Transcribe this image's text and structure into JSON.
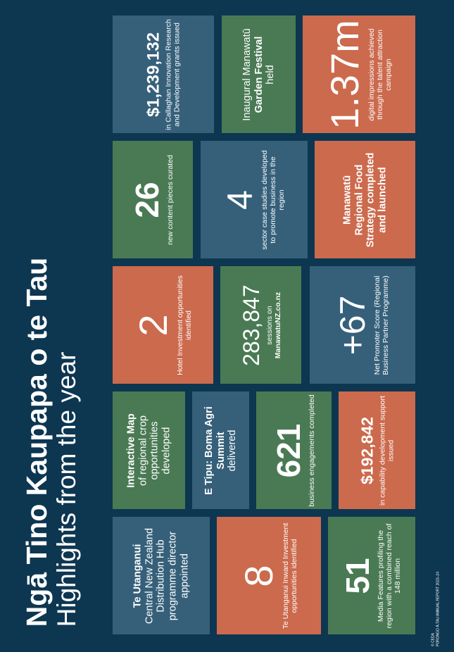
{
  "title": {
    "line1": "Ngā Tino Kaupapa o te Tau",
    "line2": "Highlights from the year"
  },
  "footer": {
    "org": "© CEDA",
    "report": "PŪRONGO Ā-TAU ANNUAL REPORT 2023–24"
  },
  "tiles": {
    "callaghan": {
      "value": "$1,239,132",
      "desc": "in Callaghan Innovation Research and Development grants issued"
    },
    "garden": {
      "pre": "Inaugural Manawatū",
      "bold": "Garden Festival",
      "post": "held"
    },
    "impressions": {
      "value": "1.37m",
      "desc": "digital impressions achieved through the talent attraction campaign"
    },
    "content": {
      "value": "26",
      "desc": "new content pieces curated"
    },
    "casestudies": {
      "value": "4",
      "desc": "sector case studies developed to promote business in the region"
    },
    "foodstrategy": {
      "text": "Manawatū Regional Food Strategy completed and launched"
    },
    "hotel": {
      "value": "2",
      "desc": "Hotel Investment opportunities identified"
    },
    "sessions": {
      "value": "283,847",
      "desc": "sessions on",
      "site": "ManawatuNZ.co.nz"
    },
    "nps": {
      "value": "+67",
      "desc": "Net Promoter Score (Regional Business Partner Programme)"
    },
    "map": {
      "bold": "Interactive Map",
      "post": "of regional crop opportunities developed"
    },
    "etipu": {
      "bold": "E Tipu: Boma Agri Summit",
      "post": "delivered"
    },
    "engagements": {
      "value": "621",
      "desc": "business engagements completed"
    },
    "capability": {
      "value": "$192,842",
      "desc": "in capability development support issued"
    },
    "utanganui": {
      "bold": "Te Utanganui",
      "post": "Central New Zealand Distribution Hub programme director appointed"
    },
    "inward": {
      "value": "8",
      "desc": "Te Utanganui Inward Investment opportunities identified"
    },
    "media": {
      "value": "51",
      "desc": "Media Features profiling the region with a combined reach of 148 million"
    }
  }
}
